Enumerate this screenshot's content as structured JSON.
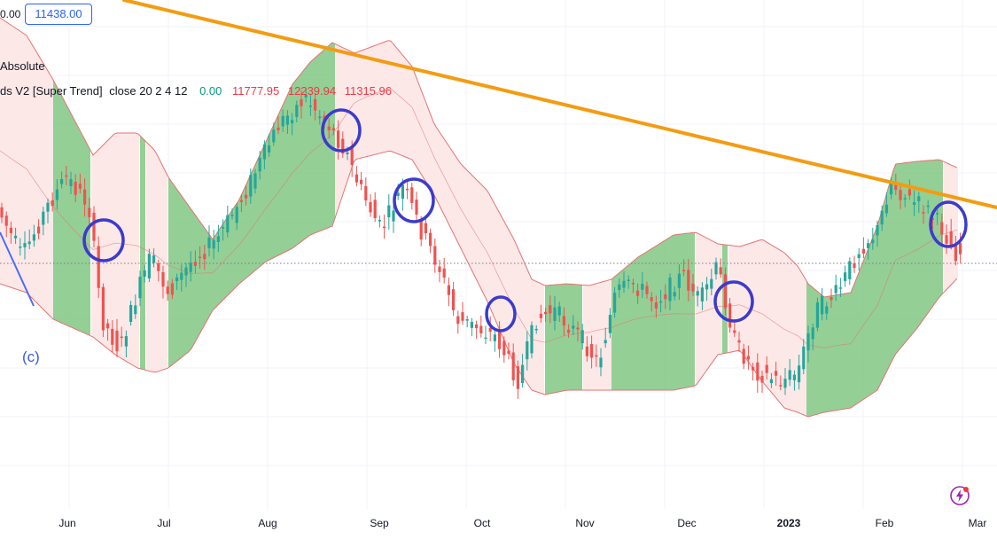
{
  "header": {
    "truncated_value": "0.00",
    "price_box": "11438.00",
    "scale_label": "Absolute"
  },
  "indicator": {
    "name": "ds V2 [Super Trend]",
    "params": "close 20 2 4 12",
    "value_basis": "0.00",
    "value_upper": "11777.95",
    "value_mid": "12239.94",
    "value_lower": "11315.96"
  },
  "annotations": {
    "wave_label": "(c)"
  },
  "colors": {
    "up_candle": "#26a69a",
    "down_candle": "#ef5350",
    "green_fill": "#81c784",
    "red_fill": "#fde8e8",
    "trendline": "#f39c12",
    "circle": "#3b3bcc",
    "band_line": "#e57373"
  },
  "chart_data": {
    "type": "candlestick",
    "x_axis_labels": [
      "Jun",
      "Jul",
      "Aug",
      "Sep",
      "Oct",
      "Nov",
      "Dec",
      "2023",
      "Feb",
      "Mar"
    ],
    "markers": {
      "circles_count": 8,
      "trendline": "descending",
      "dotted_line": "horizontal"
    }
  }
}
